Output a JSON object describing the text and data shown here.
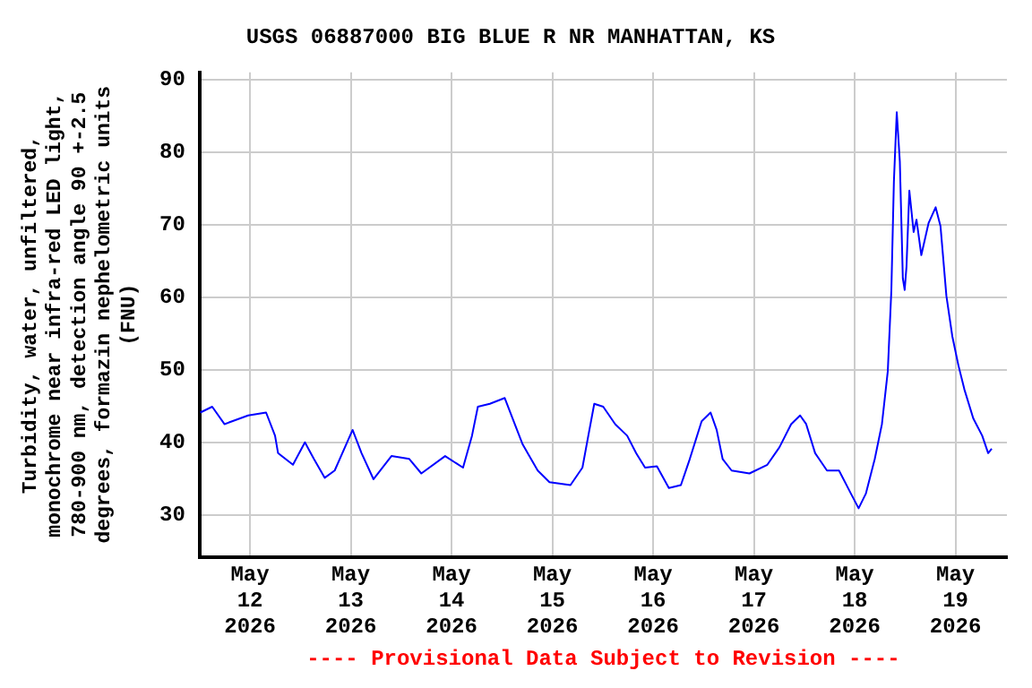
{
  "chart_data": {
    "type": "line",
    "title": "USGS 06887000 BIG BLUE R NR MANHATTAN, KS",
    "ylabel": "Turbidity, water, unfiltered,\nmonochrome near infra-red LED light,\n780-900 nm, detection angle 90 +-2.5\ndegrees, formazin nephelometric units\n(FNU)",
    "annotations": [
      "---- Provisional Data Subject to Revision ----"
    ],
    "x": [
      "2026-05-11T12:10",
      "2026-05-11T15:00",
      "2026-05-11T17:55",
      "2026-05-11T23:34",
      "2026-05-12T03:50",
      "2026-05-12T05:58",
      "2026-05-12T06:41",
      "2026-05-12T10:14",
      "2026-05-12T13:05",
      "2026-05-12T15:13",
      "2026-05-12T17:47",
      "2026-05-12T20:10",
      "2026-05-13T00:26",
      "2026-05-13T02:34",
      "2026-05-13T05:25",
      "2026-05-13T09:41",
      "2026-05-13T13:56",
      "2026-05-13T16:48",
      "2026-05-13T22:28",
      "2026-05-14T02:44",
      "2026-05-14T04:52",
      "2026-05-14T06:16",
      "2026-05-14T09:07",
      "2026-05-14T12:40",
      "2026-05-14T14:47",
      "2026-05-14T16:56",
      "2026-05-14T20:31",
      "2026-05-14T23:19",
      "2026-05-15T04:19",
      "2026-05-15T07:10",
      "2026-05-15T08:34",
      "2026-05-15T09:59",
      "2026-05-15T12:07",
      "2026-05-15T14:58",
      "2026-05-15T17:49",
      "2026-05-15T19:57",
      "2026-05-15T22:05",
      "2026-05-16T00:54",
      "2026-05-16T03:45",
      "2026-05-16T06:37",
      "2026-05-16T08:44",
      "2026-05-16T11:33",
      "2026-05-16T13:41",
      "2026-05-16T15:08",
      "2026-05-16T16:33",
      "2026-05-16T18:41",
      "2026-05-16T22:56",
      "2026-05-17T03:12",
      "2026-05-17T06:04",
      "2026-05-17T08:52",
      "2026-05-17T11:00",
      "2026-05-17T12:27",
      "2026-05-17T14:35",
      "2026-05-17T17:24",
      "2026-05-17T20:16",
      "2026-05-17T23:07",
      "2026-05-18T00:56",
      "2026-05-18T02:39",
      "2026-05-18T04:47",
      "2026-05-18T06:29",
      "2026-05-18T07:53",
      "2026-05-18T08:44",
      "2026-05-18T09:20",
      "2026-05-18T10:01",
      "2026-05-18T10:45",
      "2026-05-18T11:28",
      "2026-05-18T11:54",
      "2026-05-18T12:20",
      "2026-05-18T13:01",
      "2026-05-18T14:02",
      "2026-05-18T14:43",
      "2026-05-18T15:52",
      "2026-05-18T17:35",
      "2026-05-18T19:17",
      "2026-05-18T20:26",
      "2026-05-18T21:50",
      "2026-05-18T23:15",
      "2026-05-19T00:42",
      "2026-05-19T02:07",
      "2026-05-19T04:14",
      "2026-05-19T06:22",
      "2026-05-19T07:47",
      "2026-05-19T08:38"
    ],
    "series": [
      {
        "color": "#0000ff",
        "values": [
          44.1,
          44.9,
          42.5,
          43.7,
          44.1,
          40.9,
          38.5,
          36.9,
          40.0,
          37.7,
          35.1,
          36.1,
          41.7,
          38.5,
          34.9,
          38.1,
          37.7,
          35.7,
          38.1,
          36.5,
          40.9,
          44.9,
          45.3,
          46.1,
          42.9,
          39.7,
          36.1,
          34.5,
          34.1,
          36.5,
          40.9,
          45.3,
          44.9,
          42.5,
          40.9,
          38.5,
          36.5,
          36.7,
          33.7,
          34.1,
          37.7,
          42.9,
          44.1,
          41.7,
          37.7,
          36.1,
          35.7,
          36.9,
          39.3,
          42.5,
          43.7,
          42.5,
          38.5,
          36.1,
          36.1,
          32.9,
          30.9,
          32.9,
          37.7,
          42.5,
          49.8,
          61.0,
          75.9,
          85.5,
          78.7,
          62.6,
          61.0,
          64.2,
          74.7,
          69.0,
          70.7,
          65.8,
          70.2,
          72.4,
          69.8,
          60.2,
          54.6,
          50.6,
          47.3,
          43.3,
          40.9,
          38.5,
          39.1
        ]
      }
    ],
    "xlim": [
      "2026-05-11T12:00",
      "2026-05-19T12:15"
    ],
    "xticks": [
      {
        "value": "2026-05-12T00:00",
        "label": "May\n12\n2026"
      },
      {
        "value": "2026-05-13T00:00",
        "label": "May\n13\n2026"
      },
      {
        "value": "2026-05-14T00:00",
        "label": "May\n14\n2026"
      },
      {
        "value": "2026-05-15T00:00",
        "label": "May\n15\n2026"
      },
      {
        "value": "2026-05-16T00:00",
        "label": "May\n16\n2026"
      },
      {
        "value": "2026-05-17T00:00",
        "label": "May\n17\n2026"
      },
      {
        "value": "2026-05-18T00:00",
        "label": "May\n18\n2026"
      },
      {
        "value": "2026-05-19T00:00",
        "label": "May\n19\n2026"
      }
    ],
    "ylim": [
      24.2,
      91
    ],
    "yticks": [
      30,
      40,
      50,
      60,
      70,
      80,
      90
    ],
    "grid": true,
    "marker": "none",
    "line_style": "solid"
  }
}
